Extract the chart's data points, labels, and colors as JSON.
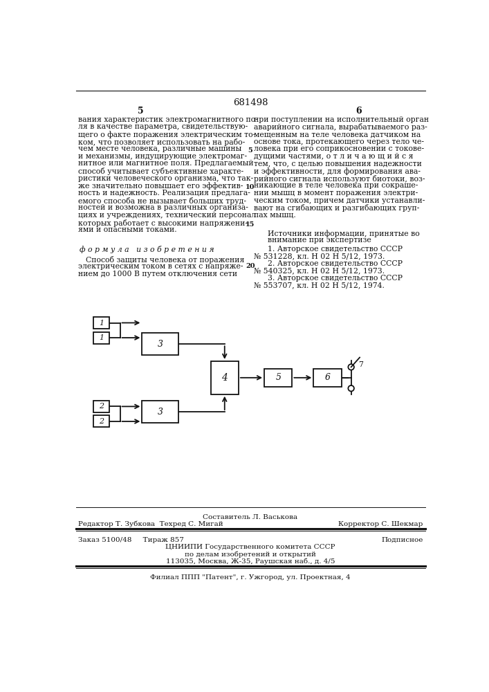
{
  "patent_number": "681498",
  "page_left": "5",
  "page_right": "6",
  "col_left_text": [
    "вания характеристик электромагнитного по-",
    "ля в качестве параметра, свидетельствую-",
    "щего о факте поражения электрическим то-",
    "ком, что позволяет использовать на рабо-",
    "чем месте человека, различные машины",
    "и механизмы, индуцирующие электромаг-",
    "нитное или магнитное поля. Предлагаемый",
    "способ учитывает субъективные характе-",
    "ристики человеческого организма, что так-",
    "же значительно повышает его эффектив-",
    "ность и надежность. Реализация предлага-",
    "емого способа не вызывает больших труд-",
    "ностей и возможна в различных организа-",
    "циях и учреждениях, технический персонал",
    "которых работает с высокими напряжени-",
    "ями и опасными токами."
  ],
  "formula_title": "формула   изобретения",
  "formula_text": [
    "Способ защиты человека от поражения",
    "электрическим током в сетях с напряже-",
    "нием до 1000 В путем отключения сети"
  ],
  "col_right_text": [
    "при поступлении на исполнительный орган",
    "аварийного сигнала, вырабатываемого раз-",
    "мещенным на теле человека датчиком на",
    "основе тока, протекающего через тело че-",
    "ловека при его соприкосновении с токове-",
    "дущими частями, о т л и ч а ю щ и й с я",
    "тем, что, с целью повышения надежности",
    "и эффективности, для формирования ава-",
    "рийного сигнала используют биотоки, воз-",
    "никающие в теле человека при сокраше-",
    "нии мышц в момент поражения электри-",
    "ческим током, причем датчики устанавли-",
    "вают на сгибающих и разгибающих груп-",
    "пах мышц."
  ],
  "sources_title": "Источники информации, принятые во",
  "sources_title2": "внимание при экспертизе",
  "sources": [
    "1. Авторское свидетельство СССР",
    "№ 531228, кл. Н 02 Н 5/12, 1973.",
    "2. Авторское свидетельство СССР",
    "№ 540325, кл. Н 02 Н 5/12, 1973.",
    "3. Авторское свидетельство СССР",
    "№ 553707, кл. Н 02 Н 5/12, 1974."
  ],
  "footer_line1": "Составитель Л. Васькова",
  "footer_line2_left": "Редактор Т. Зубкова  Техред С. Мигай",
  "footer_line2_right": "Корректор С. Шекмар",
  "footer_line3_left": "Заказ 5100/48     Тираж 857",
  "footer_line3_right": "Подписное",
  "footer_line4": "ЦНИИПИ Государственного комитета СССР",
  "footer_line5": "по делам изобретений и открытий",
  "footer_line6": "113035, Москва, Ж-35, Раушская наб., д. 4/5",
  "footer_line7": "Филиал ППП \"Патент\", г. Ужгород, ул. Проектная, 4",
  "bg_color": "#ffffff",
  "text_color": "#111111"
}
